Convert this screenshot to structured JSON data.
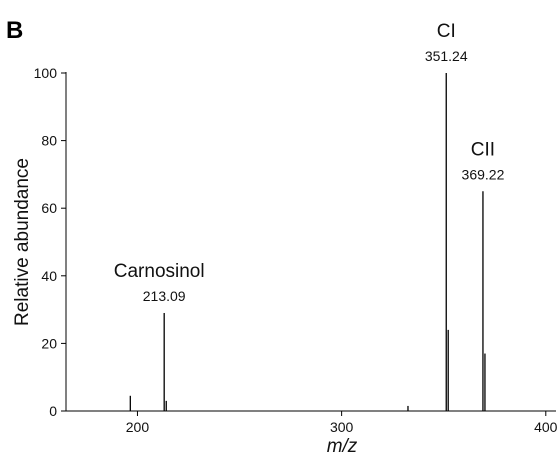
{
  "panel_label": "B",
  "chart_data": {
    "type": "bar",
    "xlabel": "m/z",
    "ylabel": "Relative abundance",
    "xlim": [
      165,
      405
    ],
    "ylim": [
      0,
      100
    ],
    "x_ticks": [
      200,
      300,
      400
    ],
    "y_ticks": [
      0,
      20,
      40,
      60,
      80,
      100
    ],
    "grid": false,
    "peaks": [
      {
        "mz": 196.5,
        "abundance": 4.5
      },
      {
        "mz": 213.09,
        "abundance": 29
      },
      {
        "mz": 214.1,
        "abundance": 3
      },
      {
        "mz": 332.5,
        "abundance": 1.5
      },
      {
        "mz": 351.24,
        "abundance": 100
      },
      {
        "mz": 352.2,
        "abundance": 24
      },
      {
        "mz": 369.22,
        "abundance": 65
      },
      {
        "mz": 370.2,
        "abundance": 17
      }
    ],
    "annotations": [
      {
        "name": "Carnosinol",
        "mz_label": "213.09",
        "mz": 213.09,
        "abundance": 29
      },
      {
        "name": "CI",
        "mz_label": "351.24",
        "mz": 351.24,
        "abundance": 100
      },
      {
        "name": "CII",
        "mz_label": "369.22",
        "mz": 369.22,
        "abundance": 65
      }
    ]
  }
}
